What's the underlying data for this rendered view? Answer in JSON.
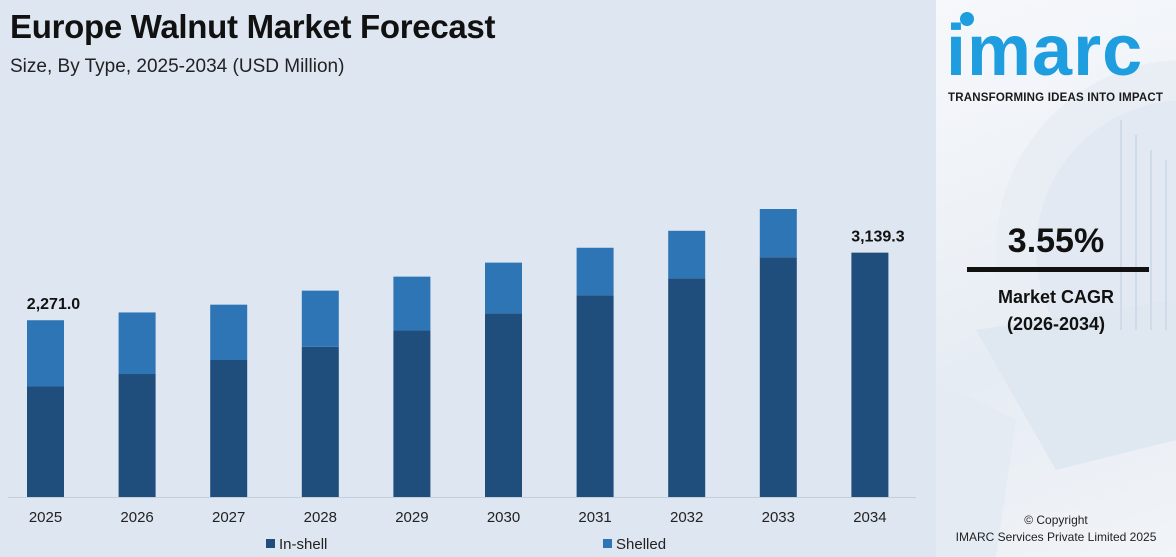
{
  "header": {
    "title": "Europe Walnut Market Forecast",
    "subtitle": "Size, By Type, 2025-2034 (USD Million)"
  },
  "colors": {
    "in_shell": "#1f4e7c",
    "shelled": "#2e75b6",
    "background": "#dde6f1",
    "brand": "#1e9ddf"
  },
  "chart_data": {
    "type": "bar",
    "stacked": true,
    "title": "Europe Walnut Market Forecast",
    "subtitle": "Size, By Type, 2025-2034 (USD Million)",
    "categories": [
      "2025",
      "2026",
      "2027",
      "2028",
      "2029",
      "2030",
      "2031",
      "2032",
      "2033",
      "2034"
    ],
    "series": [
      {
        "name": "In-shell",
        "values": [
          1420,
          1580,
          1760,
          1930,
          2140,
          2360,
          2590,
          2810,
          3080,
          3139.3
        ]
      },
      {
        "name": "Shelled",
        "values": [
          851,
          791,
          711,
          721,
          691,
          651,
          612,
          610,
          620,
          0
        ]
      }
    ],
    "totals": [
      2271.0,
      2371,
      2471,
      2651,
      2831,
      3011,
      3202,
      3420,
      3700,
      3139.3
    ],
    "data_labels": [
      {
        "category": "2025",
        "text": "2,271.0"
      },
      {
        "category": "2034",
        "text": "3,139.3"
      }
    ],
    "xlabel": "",
    "ylabel": "",
    "legend": {
      "position": "bottom",
      "entries": [
        "In-shell",
        "Shelled"
      ]
    }
  },
  "brand": {
    "logo": "imarc",
    "tagline": "TRANSFORMING IDEAS INTO IMPACT"
  },
  "cagr": {
    "value": "3.55%",
    "label_line1": "Market CAGR",
    "label_line2": "(2026-2034)"
  },
  "footer": {
    "copyright_line1": "© Copyright",
    "copyright_line2": "IMARC Services Private Limited 2025"
  }
}
